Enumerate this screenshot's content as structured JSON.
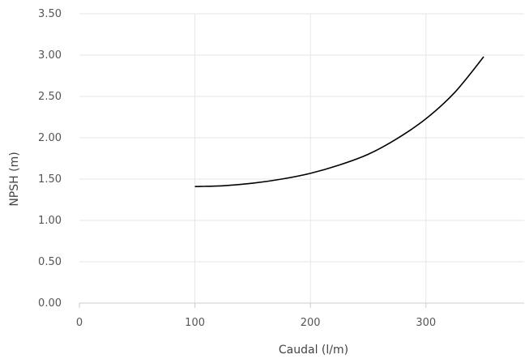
{
  "chart_data": {
    "type": "line",
    "title": "",
    "xlabel": "Caudal (l/m)",
    "ylabel": "NPSH (m)",
    "xlim": [
      0,
      385
    ],
    "ylim": [
      0,
      3.5
    ],
    "x_ticks": [
      0,
      100,
      200,
      300
    ],
    "x_tick_labels": [
      "0",
      "100",
      "200",
      "300"
    ],
    "y_ticks": [
      0,
      0.5,
      1.0,
      1.5,
      2.0,
      2.5,
      3.0,
      3.5
    ],
    "y_tick_labels": [
      "0.00",
      "0.50",
      "1.00",
      "1.50",
      "2.00",
      "2.50",
      "3.00",
      "3.50"
    ],
    "grid": true,
    "colors": {
      "line": "#000000",
      "grid": "#e6e6e6",
      "axis": "#cccccc"
    },
    "series": [
      {
        "x": [
          100,
          125,
          150,
          175,
          200,
          225,
          250,
          275,
          300,
          325,
          350
        ],
        "y": [
          1.41,
          1.42,
          1.45,
          1.5,
          1.57,
          1.67,
          1.8,
          1.99,
          2.23,
          2.55,
          2.98
        ]
      }
    ]
  }
}
